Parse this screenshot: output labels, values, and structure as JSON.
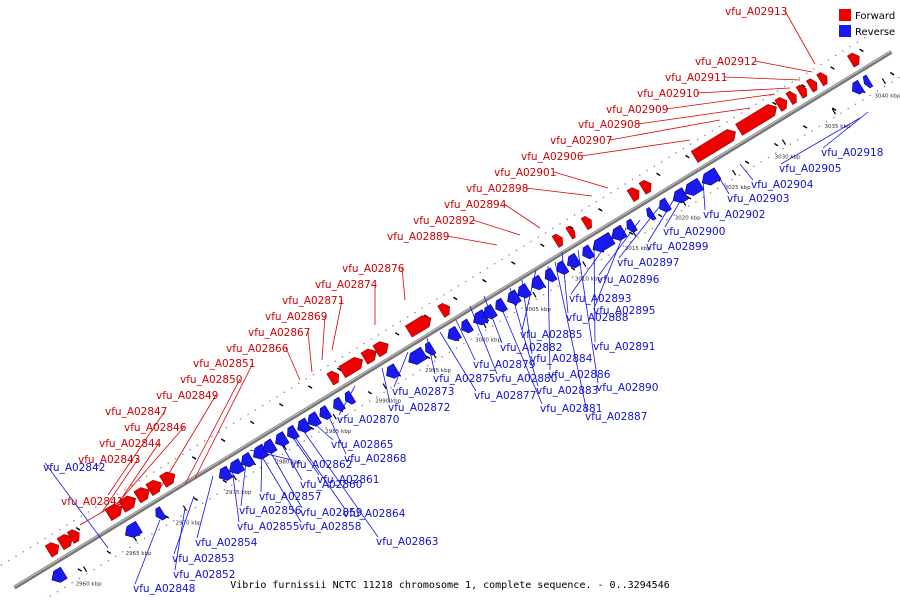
{
  "legend": {
    "forward_label": "Forward",
    "reverse_label": "Reverse",
    "forward_color": "#ee0000",
    "reverse_color": "#1a1aee"
  },
  "caption": "Vibrio furnissii NCTC 11218 chromosome 1, complete sequence. - 0..3294546",
  "genome": {
    "unit": "kbp",
    "axis_color": "#808080"
  },
  "ticks": [
    "2960 kbp",
    "2965 kbp",
    "2970 kbp",
    "2975 kbp",
    "2980 kbp",
    "2985 kbp",
    "2990 kbp",
    "2995 kbp",
    "3000 kbp",
    "3005 kbp",
    "3010 kbp",
    "3015 kbp",
    "3020 kbp",
    "3025 kbp",
    "3030 kbp",
    "3035 kbp",
    "3040 kbp"
  ],
  "forward_genes": [
    "vfu_A02841",
    "vfu_A02843",
    "vfu_A02844",
    "vfu_A02846",
    "vfu_A02847",
    "vfu_A02849",
    "vfu_A02850",
    "vfu_A02851",
    "vfu_A02866",
    "vfu_A02867",
    "vfu_A02869",
    "vfu_A02871",
    "vfu_A02874",
    "vfu_A02876",
    "vfu_A02889",
    "vfu_A02892",
    "vfu_A02894",
    "vfu_A02898",
    "vfu_A02901",
    "vfu_A02906",
    "vfu_A02907",
    "vfu_A02908",
    "vfu_A02909",
    "vfu_A02910",
    "vfu_A02911",
    "vfu_A02912",
    "vfu_A02913"
  ],
  "reverse_genes": [
    "vfu_A02842",
    "vfu_A02848",
    "vfu_A02852",
    "vfu_A02853",
    "vfu_A02854",
    "vfu_A02855",
    "vfu_A02856",
    "vfu_A02857",
    "vfu_A02858",
    "vfu_A02859",
    "vfu_A02860",
    "vfu_A02861",
    "vfu_A02862",
    "vfu_A02863",
    "vfu_A02864",
    "vfu_A02865",
    "vfu_A02868",
    "vfu_A02870",
    "vfu_A02872",
    "vfu_A02873",
    "vfu_A02875",
    "vfu_A02877",
    "vfu_A02879",
    "vfu_A02880",
    "vfu_A02881",
    "vfu_A02882",
    "vfu_A02883",
    "vfu_A02884",
    "vfu_A02885",
    "vfu_A02886",
    "vfu_A02887",
    "vfu_A02888",
    "vfu_A02890",
    "vfu_A02891",
    "vfu_A02893",
    "vfu_A02895",
    "vfu_A02896",
    "vfu_A02897",
    "vfu_A02899",
    "vfu_A02900",
    "vfu_A02902",
    "vfu_A02903",
    "vfu_A02904",
    "vfu_A02905",
    "vfu_A02918"
  ]
}
